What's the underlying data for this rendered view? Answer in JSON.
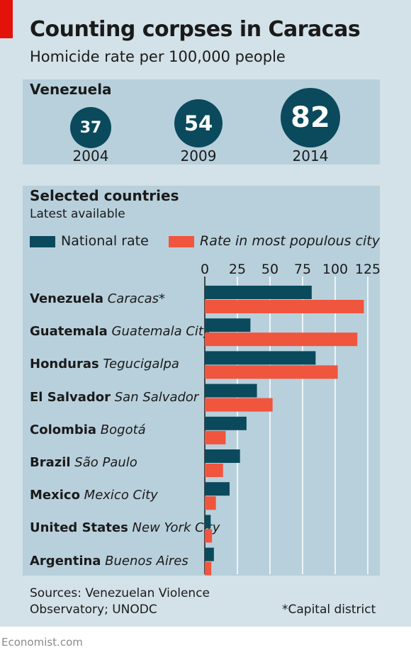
{
  "header": {
    "title": "Counting corpses in Caracas",
    "subtitle": "Homicide rate per 100,000 people"
  },
  "venezuela": {
    "label": "Venezuela",
    "points": [
      {
        "year": "2004",
        "value": "37"
      },
      {
        "year": "2009",
        "value": "54"
      },
      {
        "year": "2014",
        "value": "82"
      }
    ]
  },
  "selected": {
    "title": "Selected countries",
    "subtitle": "Latest available",
    "legend": {
      "national": "National rate",
      "city": "Rate in most populous city"
    }
  },
  "colors": {
    "national": "#0a4a5c",
    "city": "#f0553e",
    "background": "#d3e1e8",
    "panel": "#b8d0dc",
    "brand_red": "#e3120b"
  },
  "chart_data": {
    "type": "bar",
    "orientation": "horizontal",
    "categories": [
      {
        "country": "Venezuela",
        "city": "Caracas*"
      },
      {
        "country": "Guatemala",
        "city": "Guatemala City"
      },
      {
        "country": "Honduras",
        "city": "Tegucigalpa"
      },
      {
        "country": "El Salvador",
        "city": "San Salvador"
      },
      {
        "country": "Colombia",
        "city": "Bogotá"
      },
      {
        "country": "Brazil",
        "city": "São Paulo"
      },
      {
        "country": "Mexico",
        "city": "Mexico City"
      },
      {
        "country": "United States",
        "city": "New York City"
      },
      {
        "country": "Argentina",
        "city": "Buenos Aires"
      }
    ],
    "series": [
      {
        "name": "National rate",
        "values": [
          82,
          35,
          85,
          40,
          32,
          27,
          19,
          4.5,
          7
        ]
      },
      {
        "name": "Rate in most populous city",
        "values": [
          122,
          117,
          102,
          52,
          16,
          14,
          8.5,
          5.5,
          5
        ]
      }
    ],
    "xlim": [
      0,
      125
    ],
    "ticks": [
      "0",
      "25",
      "50",
      "75",
      "100",
      "125"
    ],
    "grid": true,
    "legend_position": "top"
  },
  "footer": {
    "sources": [
      "Sources: Venezuelan Violence",
      "Observatory; UNODC"
    ],
    "footnote": "*Capital district",
    "brand": "Economist.com"
  }
}
